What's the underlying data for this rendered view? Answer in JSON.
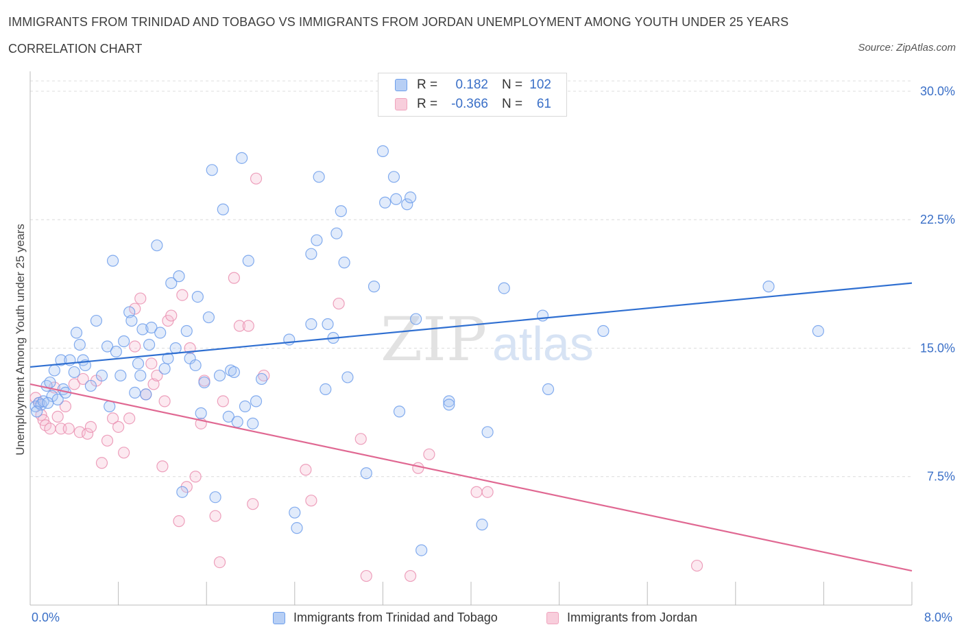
{
  "title": "IMMIGRANTS FROM TRINIDAD AND TOBAGO VS IMMIGRANTS FROM JORDAN UNEMPLOYMENT AMONG YOUTH UNDER 25 YEARS",
  "subtitle": "CORRELATION CHART",
  "source": "Source: ZipAtlas.com",
  "watermark": {
    "zip": "ZIP",
    "atlas": "atlas"
  },
  "colors": {
    "blue": "#6d9eeb",
    "blue_line": "#2f6fd1",
    "pink": "#f0a3bd",
    "pink_line": "#e06892",
    "tick_text": "#3a6fc7"
  },
  "legend": {
    "rows": [
      {
        "r_label": "R =",
        "r_value": "0.182",
        "n_label": "N =",
        "n_value": "102"
      },
      {
        "r_label": "R =",
        "r_value": "-0.366",
        "n_label": "N =",
        "n_value": "61"
      }
    ]
  },
  "chart_data": {
    "type": "scatter",
    "xlabel": "",
    "ylabel": "Unemployment Among Youth under 25 years",
    "xlim": [
      0,
      8
    ],
    "ylim": [
      0,
      30.6
    ],
    "x_tick_labels": [
      "0.0%",
      "8.0%"
    ],
    "y_ticks": [
      7.5,
      15.0,
      22.5,
      30.0
    ],
    "y_tick_labels": [
      "7.5%",
      "15.0%",
      "22.5%",
      "30.0%"
    ],
    "grid": true,
    "series": [
      {
        "name": "Immigrants from Trinidad and Tobago",
        "color": "#6d9eeb",
        "trend": {
          "x": [
            0,
            8
          ],
          "y": [
            13.9,
            18.8
          ]
        },
        "points": [
          [
            0.05,
            11.6
          ],
          [
            0.08,
            11.8
          ],
          [
            0.1,
            11.7
          ],
          [
            0.12,
            11.9
          ],
          [
            0.15,
            12.8
          ],
          [
            0.18,
            13.0
          ],
          [
            0.2,
            12.2
          ],
          [
            0.22,
            13.7
          ],
          [
            0.25,
            12.0
          ],
          [
            0.28,
            14.3
          ],
          [
            0.3,
            12.6
          ],
          [
            0.32,
            12.4
          ],
          [
            0.36,
            14.3
          ],
          [
            0.4,
            13.6
          ],
          [
            0.42,
            15.9
          ],
          [
            0.45,
            15.2
          ],
          [
            0.48,
            14.3
          ],
          [
            0.5,
            14.0
          ],
          [
            0.55,
            12.8
          ],
          [
            0.6,
            16.6
          ],
          [
            0.65,
            13.4
          ],
          [
            0.7,
            15.1
          ],
          [
            0.72,
            11.6
          ],
          [
            0.75,
            20.1
          ],
          [
            0.78,
            14.8
          ],
          [
            0.82,
            13.4
          ],
          [
            0.85,
            15.4
          ],
          [
            0.9,
            17.1
          ],
          [
            0.92,
            16.6
          ],
          [
            0.95,
            12.4
          ],
          [
            0.98,
            14.1
          ],
          [
            1.0,
            13.4
          ],
          [
            1.02,
            16.1
          ],
          [
            1.05,
            12.3
          ],
          [
            1.08,
            15.2
          ],
          [
            1.1,
            16.2
          ],
          [
            1.15,
            21.0
          ],
          [
            1.18,
            15.9
          ],
          [
            1.22,
            13.8
          ],
          [
            1.25,
            14.4
          ],
          [
            1.28,
            18.8
          ],
          [
            1.32,
            15.0
          ],
          [
            1.35,
            19.2
          ],
          [
            1.38,
            6.6
          ],
          [
            1.42,
            16.0
          ],
          [
            1.45,
            14.4
          ],
          [
            1.5,
            14.0
          ],
          [
            1.52,
            18.0
          ],
          [
            1.55,
            11.2
          ],
          [
            1.58,
            13.0
          ],
          [
            1.62,
            16.8
          ],
          [
            1.65,
            25.4
          ],
          [
            1.68,
            6.3
          ],
          [
            1.72,
            13.4
          ],
          [
            1.75,
            23.1
          ],
          [
            1.8,
            11.0
          ],
          [
            1.82,
            13.7
          ],
          [
            1.85,
            13.6
          ],
          [
            1.88,
            10.7
          ],
          [
            1.92,
            26.1
          ],
          [
            1.95,
            11.6
          ],
          [
            1.98,
            20.1
          ],
          [
            2.02,
            10.6
          ],
          [
            2.05,
            11.9
          ],
          [
            2.1,
            13.2
          ],
          [
            2.35,
            15.5
          ],
          [
            2.4,
            5.4
          ],
          [
            2.42,
            4.5
          ],
          [
            2.55,
            16.4
          ],
          [
            2.55,
            20.5
          ],
          [
            2.6,
            21.3
          ],
          [
            2.62,
            25.0
          ],
          [
            2.68,
            12.6
          ],
          [
            2.7,
            16.4
          ],
          [
            2.75,
            15.6
          ],
          [
            2.78,
            21.7
          ],
          [
            2.82,
            23.0
          ],
          [
            2.85,
            20.0
          ],
          [
            2.88,
            13.3
          ],
          [
            3.05,
            7.7
          ],
          [
            3.12,
            18.6
          ],
          [
            3.2,
            26.5
          ],
          [
            3.22,
            23.5
          ],
          [
            3.3,
            25.0
          ],
          [
            3.32,
            23.7
          ],
          [
            3.35,
            11.3
          ],
          [
            3.42,
            23.4
          ],
          [
            3.45,
            23.8
          ],
          [
            3.5,
            16.7
          ],
          [
            3.55,
            3.2
          ],
          [
            3.8,
            11.9
          ],
          [
            3.8,
            11.7
          ],
          [
            4.1,
            4.7
          ],
          [
            4.15,
            10.1
          ],
          [
            4.3,
            18.5
          ],
          [
            4.65,
            16.9
          ],
          [
            4.7,
            12.6
          ],
          [
            5.2,
            16.0
          ],
          [
            6.7,
            18.6
          ],
          [
            7.15,
            16.0
          ],
          [
            0.06,
            11.3
          ],
          [
            0.16,
            11.8
          ]
        ]
      },
      {
        "name": "Immigrants from Jordan",
        "color": "#f0a3bd",
        "trend": {
          "x": [
            0,
            8
          ],
          "y": [
            12.9,
            2.0
          ]
        },
        "points": [
          [
            0.05,
            12.1
          ],
          [
            0.08,
            11.8
          ],
          [
            0.1,
            11.1
          ],
          [
            0.12,
            10.8
          ],
          [
            0.14,
            10.5
          ],
          [
            0.18,
            10.3
          ],
          [
            0.22,
            12.7
          ],
          [
            0.25,
            11.0
          ],
          [
            0.28,
            10.3
          ],
          [
            0.32,
            11.6
          ],
          [
            0.35,
            10.3
          ],
          [
            0.4,
            12.9
          ],
          [
            0.45,
            10.1
          ],
          [
            0.48,
            13.2
          ],
          [
            0.52,
            10.0
          ],
          [
            0.55,
            10.4
          ],
          [
            0.6,
            13.1
          ],
          [
            0.65,
            8.3
          ],
          [
            0.7,
            9.6
          ],
          [
            0.75,
            10.9
          ],
          [
            0.8,
            10.4
          ],
          [
            0.85,
            8.9
          ],
          [
            0.9,
            10.9
          ],
          [
            0.95,
            15.1
          ],
          [
            1.0,
            17.9
          ],
          [
            1.05,
            12.3
          ],
          [
            1.1,
            14.1
          ],
          [
            1.12,
            12.9
          ],
          [
            1.15,
            13.4
          ],
          [
            1.2,
            8.1
          ],
          [
            1.22,
            11.9
          ],
          [
            1.25,
            16.6
          ],
          [
            1.28,
            16.9
          ],
          [
            1.35,
            4.9
          ],
          [
            1.38,
            18.1
          ],
          [
            1.42,
            6.9
          ],
          [
            1.45,
            15.0
          ],
          [
            1.5,
            7.5
          ],
          [
            1.55,
            10.6
          ],
          [
            1.58,
            13.1
          ],
          [
            1.68,
            5.2
          ],
          [
            1.72,
            2.5
          ],
          [
            1.75,
            11.9
          ],
          [
            1.85,
            19.1
          ],
          [
            1.9,
            16.3
          ],
          [
            1.98,
            16.3
          ],
          [
            2.02,
            5.9
          ],
          [
            2.05,
            24.9
          ],
          [
            2.12,
            13.4
          ],
          [
            2.5,
            7.9
          ],
          [
            2.55,
            6.1
          ],
          [
            2.8,
            17.6
          ],
          [
            3.0,
            9.7
          ],
          [
            3.05,
            1.7
          ],
          [
            3.45,
            1.7
          ],
          [
            3.52,
            8.0
          ],
          [
            3.62,
            8.8
          ],
          [
            4.05,
            6.6
          ],
          [
            4.15,
            6.6
          ],
          [
            6.05,
            2.3
          ],
          [
            0.95,
            17.3
          ]
        ]
      }
    ]
  },
  "bottom_legend": [
    "Immigrants from Trinidad and Tobago",
    "Immigrants from Jordan"
  ]
}
